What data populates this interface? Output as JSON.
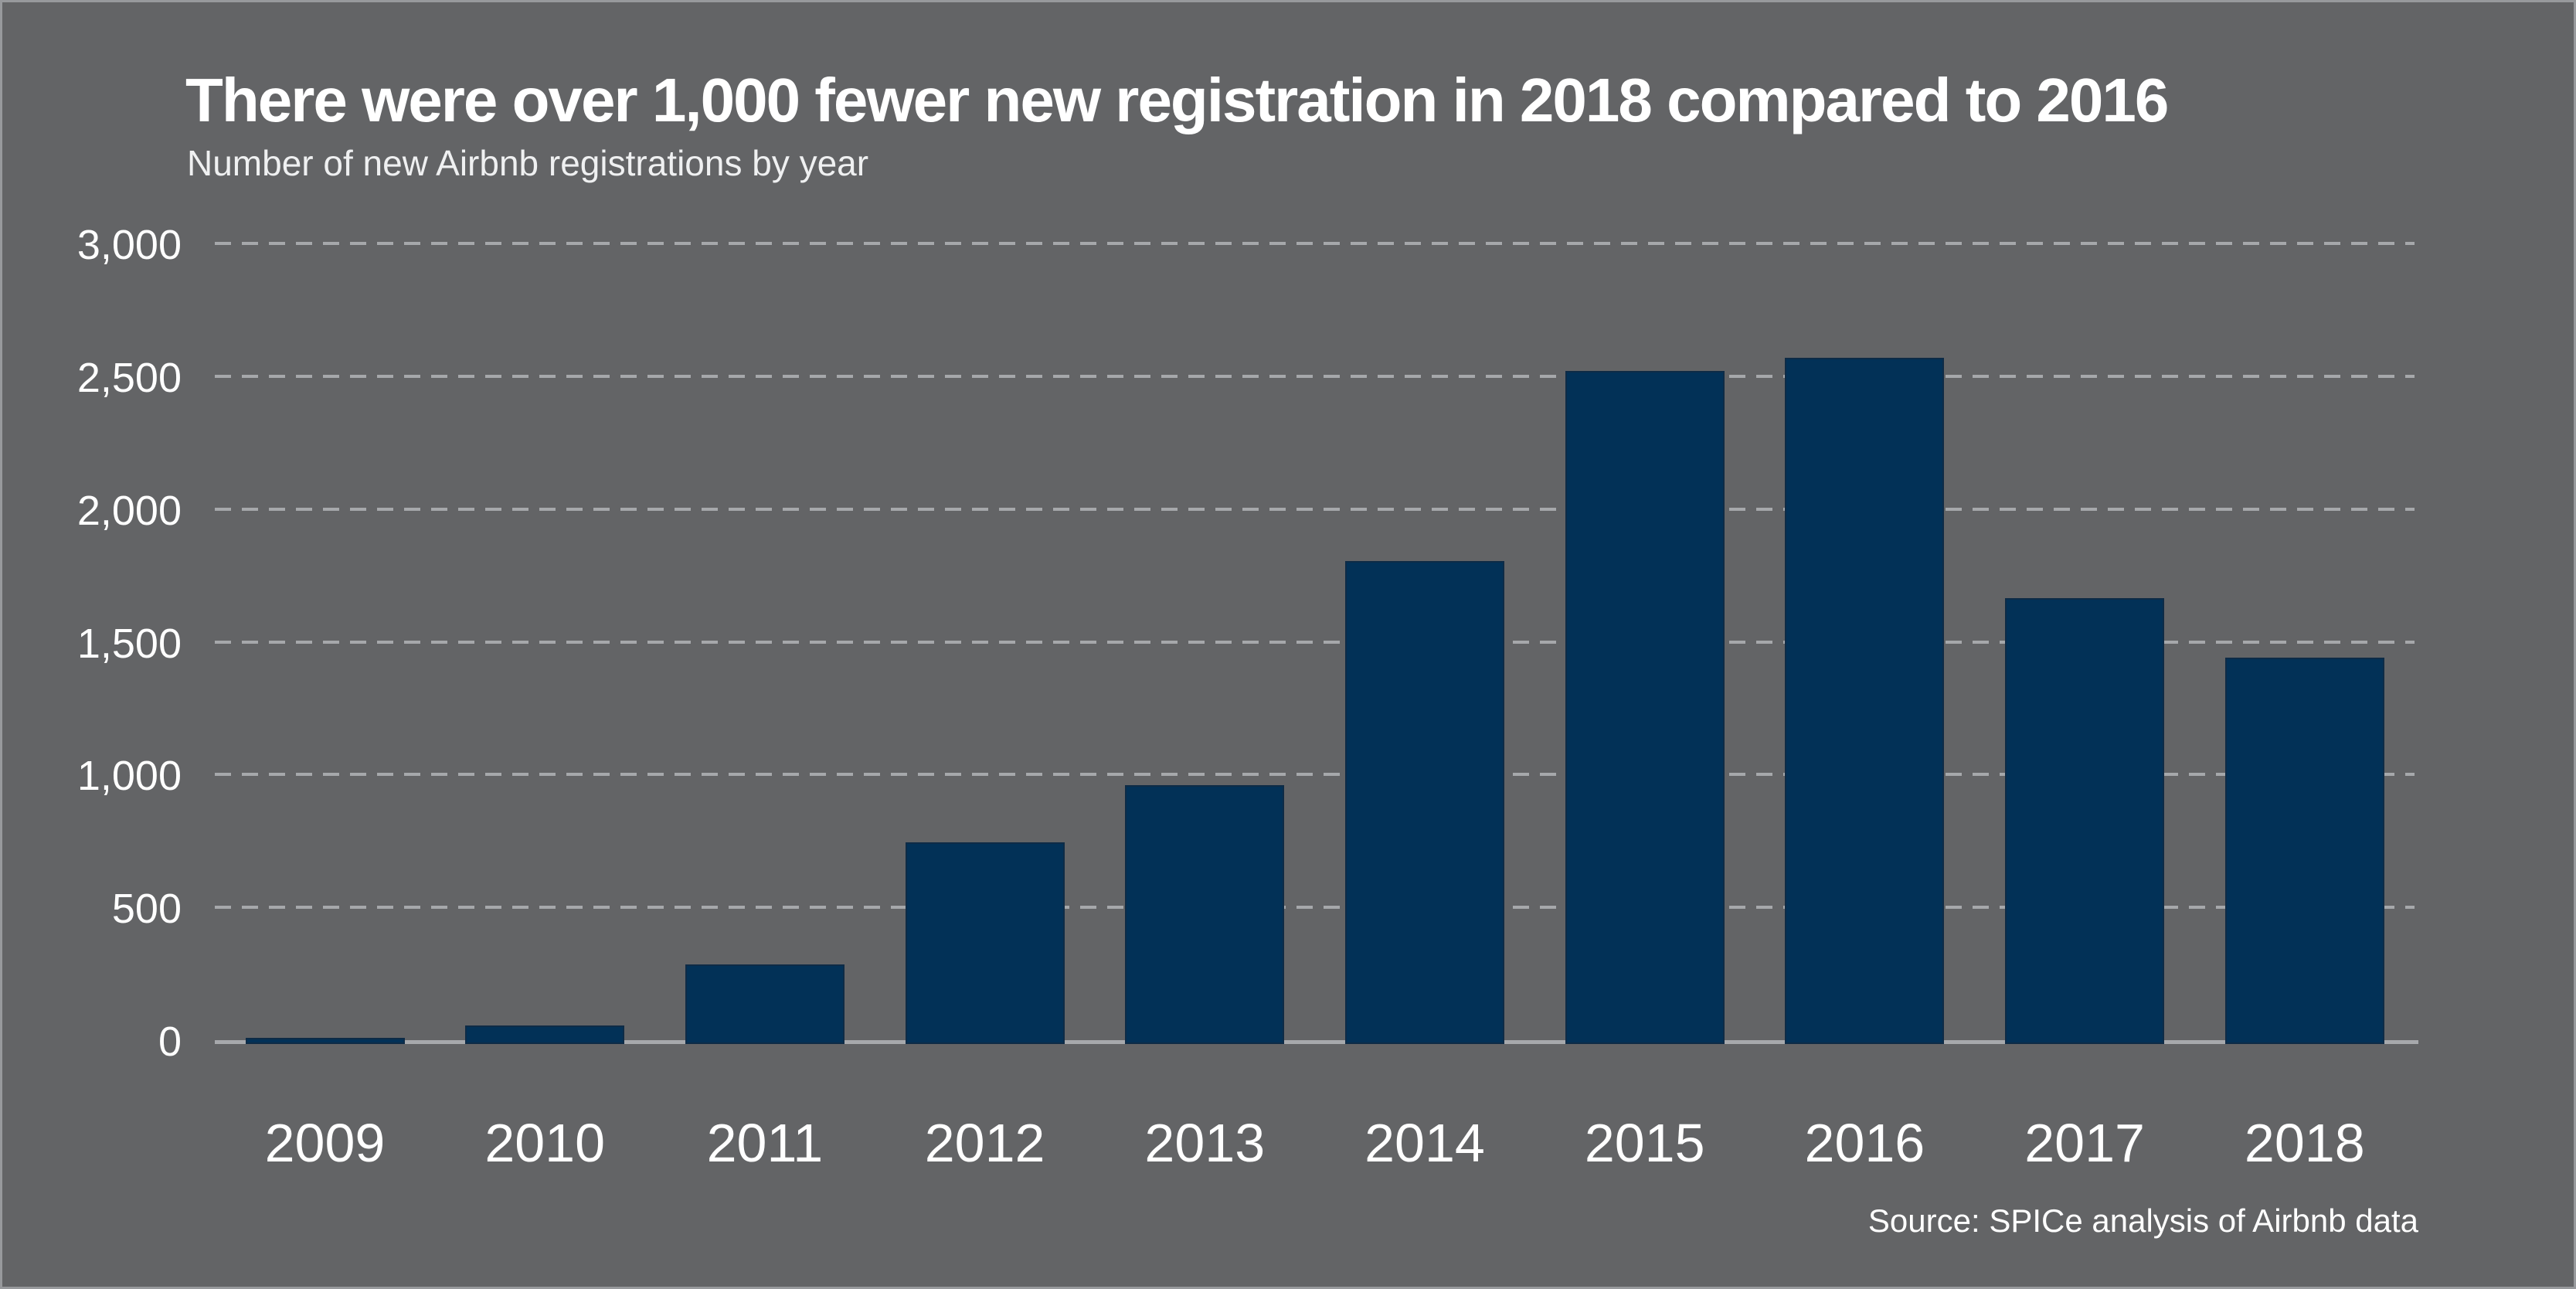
{
  "header": {
    "title": "There were over 1,000 fewer new registration in 2018 compared to 2016",
    "subtitle": "Number of new Airbnb registrations by year"
  },
  "footer": {
    "source": "Source: SPICe analysis of Airbnb data"
  },
  "chart_data": {
    "type": "bar",
    "title": "There were over 1,000 fewer new registration in 2018 compared to 2016",
    "subtitle": "Number of new Airbnb registrations by year",
    "source": "Source: SPICe analysis of Airbnb data",
    "categories": [
      "2009",
      "2010",
      "2011",
      "2012",
      "2013",
      "2014",
      "2015",
      "2016",
      "2017",
      "2018"
    ],
    "values": [
      10,
      55,
      285,
      745,
      960,
      1805,
      2520,
      2570,
      1665,
      1440
    ],
    "xlabel": "",
    "ylabel": "",
    "ylim": [
      0,
      3000
    ],
    "yticks": [
      {
        "value": 0,
        "label": "0"
      },
      {
        "value": 500,
        "label": "500"
      },
      {
        "value": 1000,
        "label": "1,000"
      },
      {
        "value": 1500,
        "label": "1,500"
      },
      {
        "value": 2000,
        "label": "2,000"
      },
      {
        "value": 2500,
        "label": "2,500"
      },
      {
        "value": 3000,
        "label": "3,000"
      }
    ],
    "grid": "horizontal-dashed",
    "legend": "none",
    "colors": {
      "bar": "#023157",
      "background": "#636466",
      "gridline": "#a6a8ab",
      "baseline": "#a7a9ac",
      "text": "#ffffff"
    }
  }
}
